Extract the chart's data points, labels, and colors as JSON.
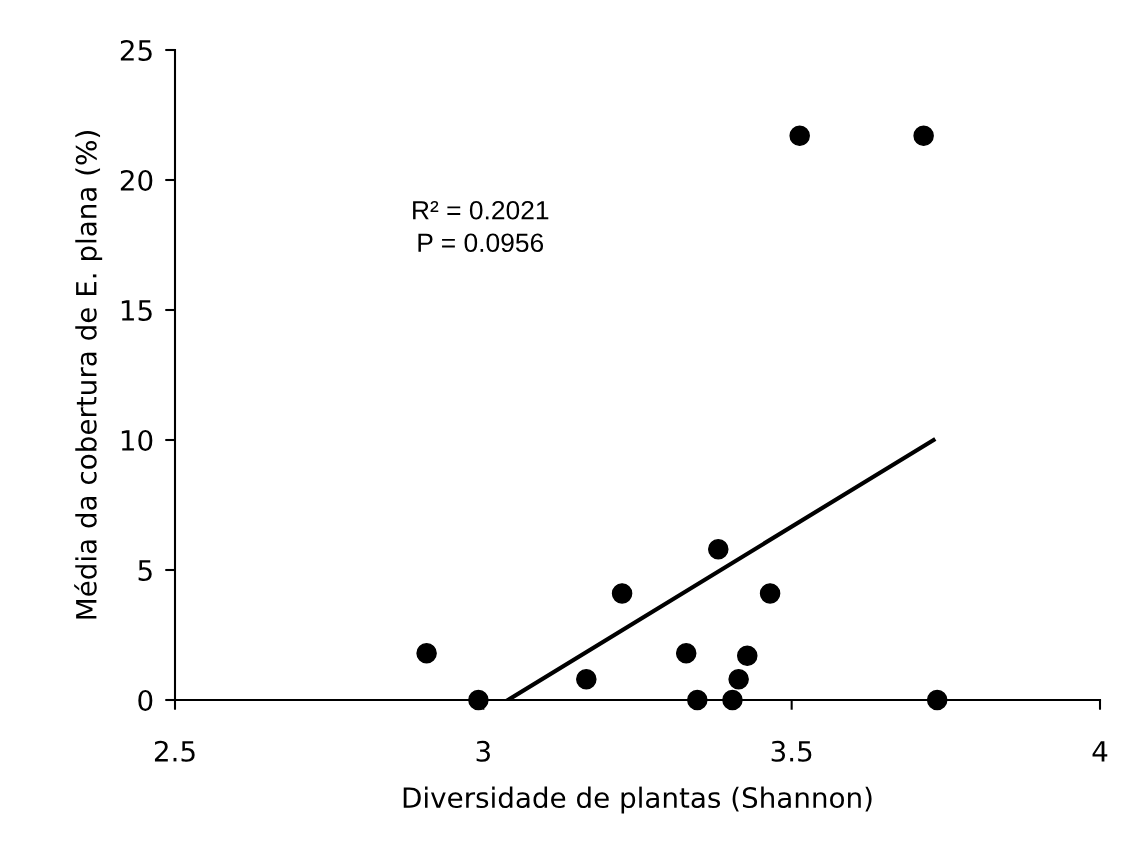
{
  "chart_data": {
    "type": "scatter",
    "xlabel": "Diversidade de plantas (Shannon)",
    "ylabel": "Média da cobertura de E. plana (%)",
    "annotations": [
      "R² = 0.2021",
      "P = 0.0956"
    ],
    "xlim": [
      2.5,
      4
    ],
    "xticks": [
      2.5,
      3,
      3.5,
      4
    ],
    "ylim": [
      0,
      25
    ],
    "yticks": [
      0,
      5,
      10,
      15,
      20,
      25
    ],
    "grid": false,
    "legend": false,
    "series": [
      {
        "marker": "circle",
        "color": "#000000",
        "x": [
          2.908,
          2.992,
          3.167,
          3.225,
          3.329,
          3.347,
          3.381,
          3.465,
          3.428,
          3.414,
          3.404,
          3.736,
          3.513,
          3.714
        ],
        "values": [
          1.8,
          0,
          0.8,
          4.1,
          1.8,
          0,
          5.8,
          4.1,
          1.7,
          0.8,
          0,
          0,
          21.7,
          21.7
        ]
      },
      {
        "type": "line",
        "color": "#000000",
        "x": [
          3.04,
          3.73
        ],
        "values": [
          0,
          10
        ],
        "line_style": "solid"
      }
    ]
  }
}
